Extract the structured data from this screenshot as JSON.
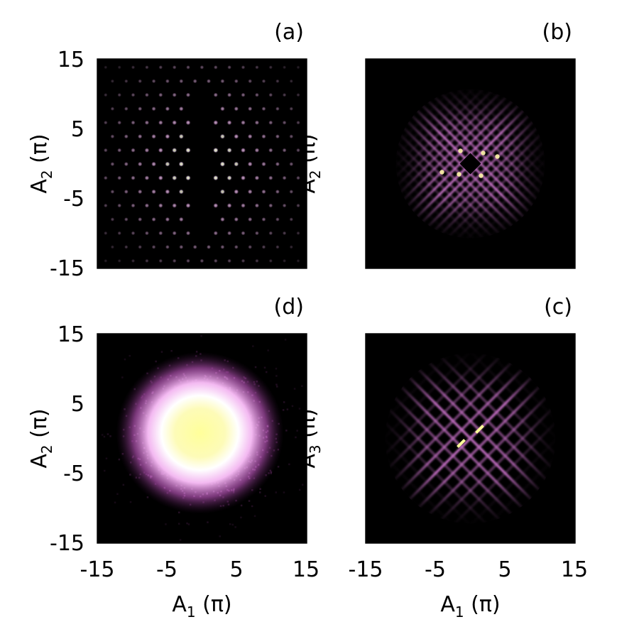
{
  "figure": {
    "background": "#ffffff",
    "colormap": [
      "#000000",
      "#5a1a5a",
      "#b05cb0",
      "#f0b8f0",
      "#ffffff",
      "#ffff9a"
    ]
  },
  "chart_data": [
    {
      "panel": "(a)",
      "type": "heatmap",
      "pattern": "lattice-dots",
      "xlabel": "",
      "xlabel_sub": "",
      "ylabel": "A",
      "ylabel_sub": "2",
      "ylabel_unit": " (π)",
      "xlim": [
        -15,
        15
      ],
      "ylim": [
        -15,
        15
      ],
      "xticks": [],
      "yticks": [
        "15",
        "5",
        "-5",
        "-15"
      ]
    },
    {
      "panel": "(b)",
      "type": "heatmap",
      "pattern": "diagonal-mesh-with-central-hole",
      "xlabel": "",
      "xlabel_sub": "",
      "ylabel": "A",
      "ylabel_sub": "2",
      "ylabel_unit": " (π)",
      "xlim": [
        -15,
        15
      ],
      "ylim": [
        -15,
        15
      ],
      "xticks": [],
      "yticks": []
    },
    {
      "panel": "(d)",
      "type": "heatmap",
      "pattern": "gaussian-cloud",
      "xlabel": "A",
      "xlabel_sub": "1",
      "xlabel_unit": " (π)",
      "ylabel": "A",
      "ylabel_sub": "2",
      "ylabel_unit": " (π)",
      "xlim": [
        -15,
        15
      ],
      "ylim": [
        -15,
        15
      ],
      "xticks": [
        "-15",
        "-5",
        "5",
        "15"
      ],
      "yticks": [
        "15",
        "5",
        "-5",
        "-15"
      ]
    },
    {
      "panel": "(c)",
      "type": "heatmap",
      "pattern": "diagonal-grid",
      "xlabel": "A",
      "xlabel_sub": "1",
      "xlabel_unit": " (π)",
      "ylabel": "A",
      "ylabel_sub": "3",
      "ylabel_unit": " (π)",
      "xlim": [
        -15,
        15
      ],
      "ylim": [
        -15,
        15
      ],
      "xticks": [
        "-15",
        "-5",
        "5",
        "15"
      ],
      "yticks": []
    }
  ]
}
